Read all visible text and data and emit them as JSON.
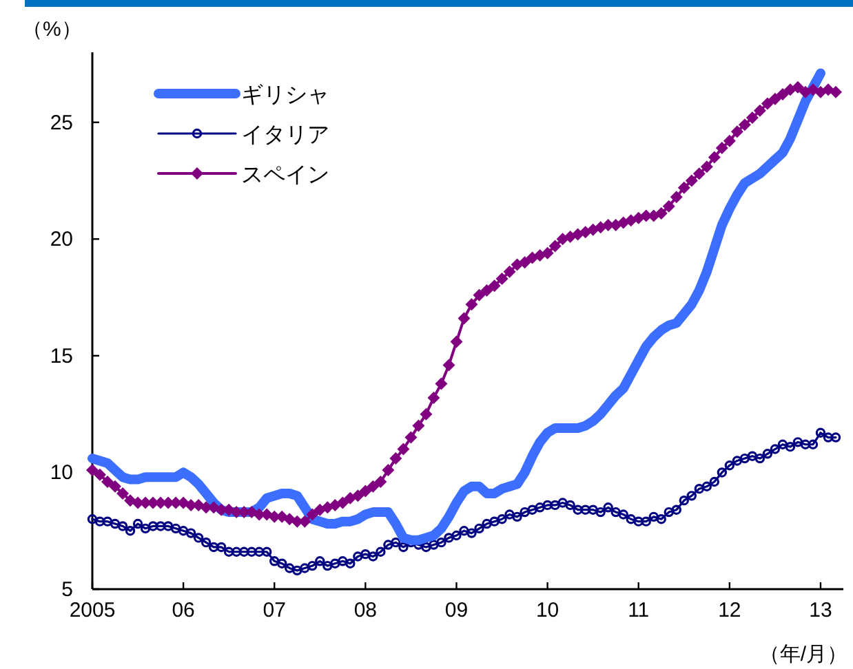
{
  "chart_data": {
    "type": "line",
    "ylabel": "（%）",
    "xlabel": "（年/月）",
    "legend": "top left",
    "grid": false,
    "xlim": [
      "2005-01",
      "2013-04"
    ],
    "ylim": [
      5,
      28
    ],
    "xticks": [
      {
        "value": "2005-01",
        "label": "2005"
      },
      {
        "value": "2006-01",
        "label": "06"
      },
      {
        "value": "2007-01",
        "label": "07"
      },
      {
        "value": "2008-01",
        "label": "08"
      },
      {
        "value": "2009-01",
        "label": "09"
      },
      {
        "value": "2010-01",
        "label": "10"
      },
      {
        "value": "2011-01",
        "label": "11"
      },
      {
        "value": "2012-01",
        "label": "12"
      },
      {
        "value": "2013-01",
        "label": "13"
      }
    ],
    "yticks": [
      5,
      10,
      15,
      20,
      25
    ],
    "x": [
      "2005-01",
      "2005-02",
      "2005-03",
      "2005-04",
      "2005-05",
      "2005-06",
      "2005-07",
      "2005-08",
      "2005-09",
      "2005-10",
      "2005-11",
      "2005-12",
      "2006-01",
      "2006-02",
      "2006-03",
      "2006-04",
      "2006-05",
      "2006-06",
      "2006-07",
      "2006-08",
      "2006-09",
      "2006-10",
      "2006-11",
      "2006-12",
      "2007-01",
      "2007-02",
      "2007-03",
      "2007-04",
      "2007-05",
      "2007-06",
      "2007-07",
      "2007-08",
      "2007-09",
      "2007-10",
      "2007-11",
      "2007-12",
      "2008-01",
      "2008-02",
      "2008-03",
      "2008-04",
      "2008-05",
      "2008-06",
      "2008-07",
      "2008-08",
      "2008-09",
      "2008-10",
      "2008-11",
      "2008-12",
      "2009-01",
      "2009-02",
      "2009-03",
      "2009-04",
      "2009-05",
      "2009-06",
      "2009-07",
      "2009-08",
      "2009-09",
      "2009-10",
      "2009-11",
      "2009-12",
      "2010-01",
      "2010-02",
      "2010-03",
      "2010-04",
      "2010-05",
      "2010-06",
      "2010-07",
      "2010-08",
      "2010-09",
      "2010-10",
      "2010-11",
      "2010-12",
      "2011-01",
      "2011-02",
      "2011-03",
      "2011-04",
      "2011-05",
      "2011-06",
      "2011-07",
      "2011-08",
      "2011-09",
      "2011-10",
      "2011-11",
      "2011-12",
      "2012-01",
      "2012-02",
      "2012-03",
      "2012-04",
      "2012-05",
      "2012-06",
      "2012-07",
      "2012-08",
      "2012-09",
      "2012-10",
      "2012-11",
      "2012-12",
      "2013-01",
      "2013-02",
      "2013-03"
    ],
    "series": [
      {
        "name": "ギリシャ",
        "color": "#3c6eff",
        "marker": "none",
        "values": [
          10.6,
          10.5,
          10.4,
          10.1,
          9.8,
          9.7,
          9.7,
          9.8,
          9.8,
          9.8,
          9.8,
          9.8,
          10.0,
          9.8,
          9.5,
          9.1,
          8.7,
          8.4,
          8.3,
          8.3,
          8.3,
          8.3,
          8.5,
          8.9,
          9.0,
          9.1,
          9.1,
          9.0,
          8.5,
          8.0,
          7.9,
          7.8,
          7.8,
          7.9,
          7.9,
          8.0,
          8.2,
          8.3,
          8.3,
          8.3,
          7.8,
          7.2,
          7.1,
          7.1,
          7.2,
          7.3,
          7.6,
          8.1,
          8.7,
          9.2,
          9.4,
          9.4,
          9.1,
          9.1,
          9.3,
          9.4,
          9.5,
          10.0,
          10.7,
          11.3,
          11.7,
          11.9,
          11.9,
          11.9,
          11.9,
          12.0,
          12.2,
          12.5,
          12.9,
          13.3,
          13.6,
          14.2,
          14.8,
          15.4,
          15.8,
          16.1,
          16.3,
          16.4,
          16.8,
          17.2,
          17.8,
          18.6,
          19.6,
          20.6,
          21.3,
          21.9,
          22.4,
          22.6,
          22.8,
          23.1,
          23.4,
          23.7,
          24.3,
          25.1,
          25.9,
          26.5,
          27.1,
          null,
          null
        ]
      },
      {
        "name": "イタリア",
        "color": "#000080",
        "marker": "circle",
        "values": [
          8.0,
          7.9,
          7.9,
          7.8,
          7.7,
          7.5,
          7.8,
          7.6,
          7.7,
          7.7,
          7.7,
          7.6,
          7.5,
          7.4,
          7.2,
          7.0,
          6.8,
          6.8,
          6.6,
          6.6,
          6.6,
          6.6,
          6.6,
          6.6,
          6.2,
          6.1,
          5.9,
          5.8,
          5.9,
          6.0,
          6.2,
          6.0,
          6.1,
          6.2,
          6.1,
          6.4,
          6.5,
          6.4,
          6.6,
          6.9,
          7.0,
          6.8,
          7.0,
          6.9,
          6.8,
          6.9,
          7.0,
          7.2,
          7.3,
          7.5,
          7.4,
          7.6,
          7.8,
          7.9,
          8.0,
          8.2,
          8.1,
          8.3,
          8.4,
          8.5,
          8.6,
          8.6,
          8.7,
          8.6,
          8.4,
          8.4,
          8.4,
          8.3,
          8.5,
          8.3,
          8.2,
          8.0,
          7.9,
          7.9,
          8.1,
          8.0,
          8.3,
          8.4,
          8.8,
          9.0,
          9.3,
          9.4,
          9.6,
          10.0,
          10.3,
          10.5,
          10.6,
          10.7,
          10.6,
          10.8,
          11.0,
          11.2,
          11.1,
          11.3,
          11.2,
          11.2,
          11.7,
          11.5,
          11.5
        ]
      },
      {
        "name": "スペイン",
        "color": "#800080",
        "marker": "diamond",
        "values": [
          10.1,
          9.9,
          9.6,
          9.4,
          9.1,
          8.8,
          8.7,
          8.7,
          8.7,
          8.7,
          8.7,
          8.7,
          8.7,
          8.6,
          8.6,
          8.5,
          8.5,
          8.4,
          8.4,
          8.3,
          8.3,
          8.3,
          8.2,
          8.2,
          8.1,
          8.1,
          8.0,
          7.9,
          7.9,
          8.2,
          8.4,
          8.5,
          8.6,
          8.7,
          8.9,
          9.0,
          9.2,
          9.4,
          9.6,
          10.1,
          10.6,
          11.0,
          11.5,
          12.0,
          12.5,
          13.2,
          13.8,
          14.6,
          15.6,
          16.6,
          17.2,
          17.6,
          17.8,
          18.0,
          18.3,
          18.6,
          18.9,
          19.0,
          19.2,
          19.3,
          19.4,
          19.7,
          20.0,
          20.1,
          20.2,
          20.3,
          20.4,
          20.5,
          20.6,
          20.6,
          20.7,
          20.8,
          20.9,
          21.0,
          21.0,
          21.1,
          21.4,
          21.8,
          22.2,
          22.5,
          22.8,
          23.1,
          23.5,
          23.9,
          24.2,
          24.6,
          24.9,
          25.2,
          25.5,
          25.8,
          26.0,
          26.2,
          26.4,
          26.5,
          26.3,
          26.4,
          26.3,
          26.4,
          26.3
        ]
      }
    ]
  }
}
